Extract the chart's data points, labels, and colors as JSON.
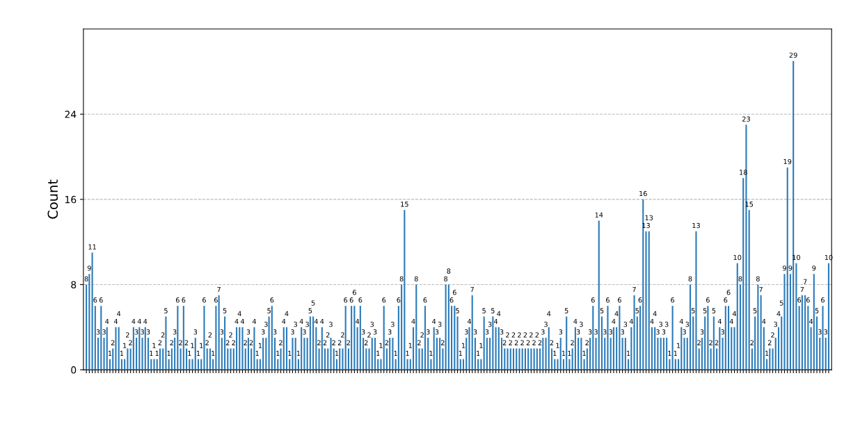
{
  "chart_data": {
    "type": "bar",
    "ylabel": "Count",
    "color": "#2b7bba",
    "values": [
      8,
      9,
      11,
      6,
      3,
      6,
      3,
      4,
      1,
      2,
      4,
      4,
      1,
      1,
      2,
      2,
      4,
      3,
      4,
      3,
      4,
      3,
      1,
      1,
      1,
      2,
      2,
      5,
      1,
      2,
      3,
      6,
      2,
      6,
      2,
      1,
      1,
      3,
      1,
      1,
      6,
      2,
      2,
      1,
      6,
      7,
      3,
      5,
      2,
      2,
      2,
      4,
      4,
      4,
      2,
      3,
      2,
      4,
      1,
      1,
      3,
      3,
      5,
      6,
      3,
      1,
      2,
      4,
      4,
      1,
      3,
      3,
      1,
      4,
      3,
      3,
      5,
      5,
      4,
      2,
      4,
      2,
      2,
      3,
      2,
      1,
      2,
      2,
      6,
      2,
      6,
      6,
      4,
      6,
      3,
      2,
      2,
      3,
      3,
      1,
      1,
      6,
      2,
      3,
      3,
      1,
      6,
      8,
      15,
      1,
      1,
      4,
      8,
      2,
      2,
      6,
      3,
      1,
      4,
      3,
      3,
      2,
      8,
      8,
      6,
      6,
      5,
      1,
      1,
      3,
      4,
      7,
      3,
      1,
      1,
      5,
      3,
      3,
      5,
      4,
      4,
      3,
      2,
      2,
      2,
      2,
      2,
      2,
      2,
      2,
      2,
      2,
      2,
      2,
      2,
      3,
      3,
      4,
      2,
      1,
      1,
      3,
      1,
      5,
      1,
      2,
      4,
      3,
      3,
      1,
      2,
      3,
      6,
      3,
      14,
      5,
      3,
      6,
      3,
      4,
      4,
      6,
      3,
      3,
      1,
      4,
      7,
      5,
      6,
      16,
      13,
      13,
      4,
      4,
      3,
      3,
      3,
      3,
      1,
      6,
      1,
      1,
      4,
      3,
      3,
      8,
      5,
      13,
      2,
      3,
      5,
      6,
      2,
      5,
      2,
      4,
      3,
      6,
      6,
      4,
      4,
      10,
      8,
      18,
      23,
      15,
      2,
      5,
      8,
      7,
      4,
      1,
      2,
      2,
      3,
      4,
      5,
      9,
      19,
      9,
      29,
      10,
      6,
      7,
      7,
      6,
      4,
      9,
      5,
      3,
      6,
      3,
      10
    ],
    "ylim": [
      0,
      32
    ],
    "yticks": [
      0,
      8,
      16,
      24
    ],
    "grid": "y",
    "data_labels": true
  }
}
